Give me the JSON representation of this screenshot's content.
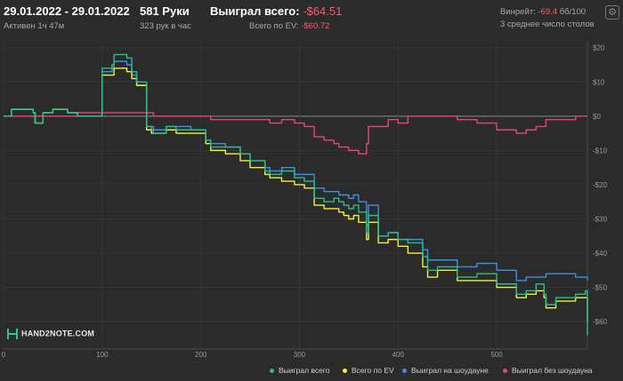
{
  "header": {
    "date_range": "29.01.2022 - 29.01.2022",
    "active": "Активен 1ч 47м",
    "hands": "581 Руки",
    "hands_per_hour": "323 рук в час",
    "won_label": "Выиграл всего:",
    "won_value": "-$64.51",
    "ev_label": "Всего по EV:",
    "ev_value": "-$60.72",
    "winrate_label": "Винрейт:",
    "winrate_value": "-69.4",
    "winrate_unit": "бб/100",
    "avg_tables": "3 среднее число столов"
  },
  "logo": {
    "text": "HAND2NOTE.COM"
  },
  "colors": {
    "won": "#26c08b",
    "ev": "#f2f03a",
    "showdown": "#3d8fe8",
    "nonshowdown": "#e8437a",
    "negative": "#ff5a6e"
  },
  "icons": {
    "settings": "gear-icon"
  },
  "chart_data": {
    "type": "line",
    "xlabel": "",
    "ylabel": "",
    "xlim": [
      0,
      592
    ],
    "ylim": [
      -68,
      22
    ],
    "x_ticks": [
      0,
      100,
      200,
      300,
      400,
      500
    ],
    "y_ticks": [
      20,
      10,
      0,
      -10,
      -20,
      -30,
      -40,
      -50,
      -60
    ],
    "x_tick_labels": [
      "0",
      "100",
      "200",
      "300",
      "400",
      "500"
    ],
    "y_tick_labels": [
      "$20",
      "$10",
      "$0",
      "-$10",
      "-$20",
      "-$30",
      "-$40",
      "-$50",
      "-$60"
    ],
    "grid": true,
    "legend": "bottom-right",
    "x": [
      0,
      8,
      30,
      32,
      40,
      50,
      65,
      75,
      100,
      110,
      112,
      125,
      130,
      135,
      145,
      150,
      152,
      165,
      175,
      190,
      205,
      210,
      225,
      240,
      250,
      265,
      270,
      282,
      295,
      305,
      315,
      325,
      335,
      340,
      345,
      350,
      355,
      360,
      368,
      370,
      380,
      390,
      400,
      410,
      425,
      430,
      440,
      460,
      480,
      500,
      520,
      530,
      540,
      548,
      550,
      560,
      580,
      590,
      592
    ],
    "series": [
      {
        "name": "Выиграл всего",
        "color": "#26c08b",
        "values": [
          0,
          2,
          1,
          -2,
          1,
          2,
          1,
          0,
          14,
          15,
          18,
          17,
          13,
          10,
          -3,
          -4,
          -5,
          -3,
          -4,
          -4,
          -7,
          -9,
          -9,
          -11,
          -13,
          -16,
          -17,
          -16,
          -18,
          -19,
          -24,
          -25,
          -24,
          -25,
          -26,
          -27,
          -26,
          -28,
          -34,
          -29,
          -35,
          -34,
          -36,
          -37,
          -41,
          -45,
          -44,
          -47,
          -46,
          -49,
          -52,
          -51,
          -49,
          -52,
          -55,
          -53,
          -52,
          -51,
          -64
        ]
      },
      {
        "name": "Всего по EV",
        "color": "#f2f03a",
        "values": [
          0,
          2,
          1,
          -2,
          1,
          2,
          1,
          0,
          12,
          12,
          14,
          13,
          11,
          9,
          -4,
          -5,
          -5,
          -4,
          -5,
          -5,
          -8,
          -10,
          -11,
          -13,
          -15,
          -17,
          -18,
          -19,
          -20,
          -21,
          -26,
          -27,
          -27,
          -28,
          -29,
          -30,
          -29,
          -31,
          -36,
          -31,
          -37,
          -36,
          -38,
          -40,
          -44,
          -47,
          -45,
          -48,
          -48,
          -50,
          -53,
          -52,
          -51,
          -53,
          -56,
          -54,
          -53,
          -53,
          -60
        ]
      },
      {
        "name": "Выиграл на шоудауне",
        "color": "#3d8fe8",
        "values": [
          0,
          2,
          1,
          -2,
          1,
          2,
          1,
          0,
          13,
          14,
          16,
          15,
          12,
          9,
          -3,
          -3,
          -4,
          -3,
          -3,
          -4,
          -7,
          -8,
          -9,
          -11,
          -13,
          -15,
          -16,
          -15,
          -17,
          -17,
          -21,
          -22,
          -22,
          -23,
          -23,
          -24,
          -23,
          -25,
          -32,
          -26,
          -35,
          -34,
          -36,
          -36,
          -39,
          -42,
          -42,
          -44,
          -43,
          -45,
          -48,
          -47,
          -47,
          -47,
          -46,
          -46,
          -47,
          -47,
          -48
        ]
      },
      {
        "name": "Выиграл без шоудауна",
        "color": "#e8437a",
        "values": [
          0,
          0,
          0,
          0,
          0,
          0,
          0,
          1,
          1,
          1,
          1,
          1,
          1,
          1,
          1,
          1,
          0,
          0,
          0,
          0,
          0,
          -1,
          -1,
          -1,
          -1,
          -1,
          -2,
          -1,
          -2,
          -3,
          -6,
          -7,
          -8,
          -9,
          -9,
          -10,
          -10,
          -11,
          -8,
          -3,
          -3,
          -1,
          -2,
          0,
          0,
          0,
          0,
          -1,
          -2,
          -4,
          -5,
          -4,
          -3,
          -3,
          -1,
          -1,
          0,
          0,
          0
        ]
      }
    ]
  }
}
